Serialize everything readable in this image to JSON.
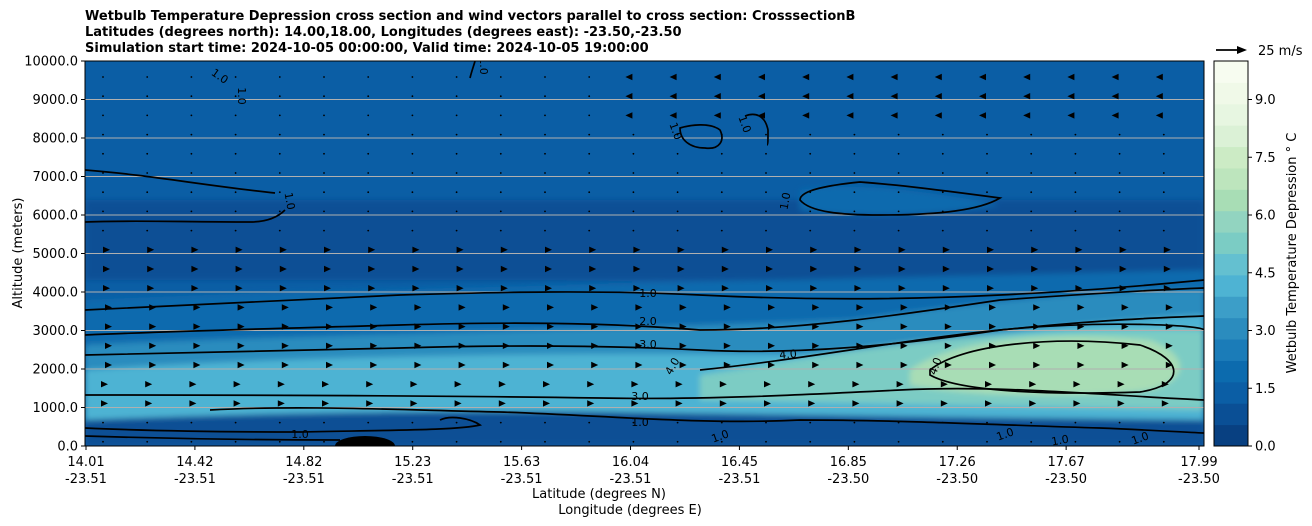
{
  "title": {
    "line1": "Wetbulb Temperature Depression cross section and wind vectors parallel to cross section: CrosssectionB",
    "line2": "Latitudes (degrees north): 14.00,18.00, Longitudes (degrees east): -23.50,-23.50",
    "line3": "Simulation start time: 2024-10-05 00:00:00, Valid time: 2024-10-05 19:00:00"
  },
  "chart_data": {
    "type": "contour",
    "ylabel": "Altitude (meters)",
    "xlabel_lat": "Latitude (degrees N)",
    "xlabel_lon": "Longitude (degrees E)",
    "ylim": [
      0,
      10000
    ],
    "y_ticks": [
      "0.0",
      "1000.0",
      "2000.0",
      "3000.0",
      "4000.0",
      "5000.0",
      "6000.0",
      "7000.0",
      "8000.0",
      "9000.0",
      "10000.0"
    ],
    "x_ticks_lat": [
      "14.01",
      "14.42",
      "14.82",
      "15.23",
      "15.63",
      "16.04",
      "16.45",
      "16.85",
      "17.26",
      "17.67",
      "17.99"
    ],
    "x_ticks_lon": [
      "-23.51",
      "-23.51",
      "-23.51",
      "-23.51",
      "-23.51",
      "-23.51",
      "-23.51",
      "-23.50",
      "-23.50",
      "-23.50",
      "-23.50"
    ],
    "grid": "horizontal",
    "colorbar": {
      "label": "Wetbulb Temperature Depression ° C",
      "ticks": [
        "0.0",
        "1.5",
        "3.0",
        "4.5",
        "6.0",
        "7.5",
        "9.0"
      ],
      "range": [
        0,
        10
      ],
      "colors": [
        "#084081",
        "#0a4f95",
        "#0b5ea5",
        "#0c6bae",
        "#1b7cb8",
        "#2b8cbe",
        "#3c9ec8",
        "#4eb3d3",
        "#64c0d0",
        "#7bccc4",
        "#92d4c0",
        "#a8ddb5",
        "#bde5bd",
        "#ccebc5",
        "#dbf1d6",
        "#e7f6e1",
        "#f0f9e8",
        "#f7fcf0"
      ]
    },
    "reference_vector": "25 m/s",
    "contour_labels": [
      "1.0",
      "2.0",
      "3.0",
      "4.0"
    ],
    "contour_levels": [
      1.0,
      2.0,
      3.0,
      4.0
    ]
  }
}
